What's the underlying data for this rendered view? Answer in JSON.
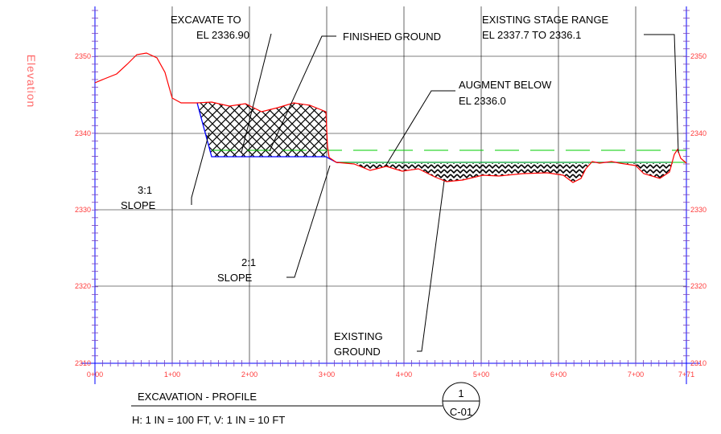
{
  "sheet": {
    "y_axis_title": "Elevation",
    "elevation_ticks": [
      "2350",
      "2340",
      "2330",
      "2320",
      "2310"
    ],
    "station_ticks": [
      "0+00",
      "1+00",
      "2+00",
      "3+00",
      "4+00",
      "5+00",
      "6+00",
      "7+00",
      "7+71"
    ],
    "notes": {
      "excavate_1": "EXCAVATE TO",
      "excavate_2": "EL 2336.90",
      "finished_ground": "FINISHED GROUND",
      "stage_1": "EXISTING STAGE RANGE",
      "stage_2": "EL 2337.7 TO 2336.1",
      "augment_1": "AUGMENT BELOW",
      "augment_2": "EL 2336.0",
      "slope31_1": "3:1",
      "slope31_2": "SLOPE",
      "slope21_1": "2:1",
      "slope21_2": "SLOPE",
      "existing_1": "EXISTING",
      "existing_2": "GROUND"
    },
    "title_block": {
      "title": "EXCAVATION - PROFILE",
      "scale": "H: 1 IN = 100 FT, V: 1 IN = 10 FT",
      "detail_number": "1",
      "sheet_ref": "C-01"
    },
    "colors": {
      "grid": "#000000",
      "axis": "#0000ff",
      "existing_ground": "#ff0000",
      "finished_ground": "#0000ff",
      "stage_line": "#00cc00",
      "annotation": "#000000"
    }
  }
}
